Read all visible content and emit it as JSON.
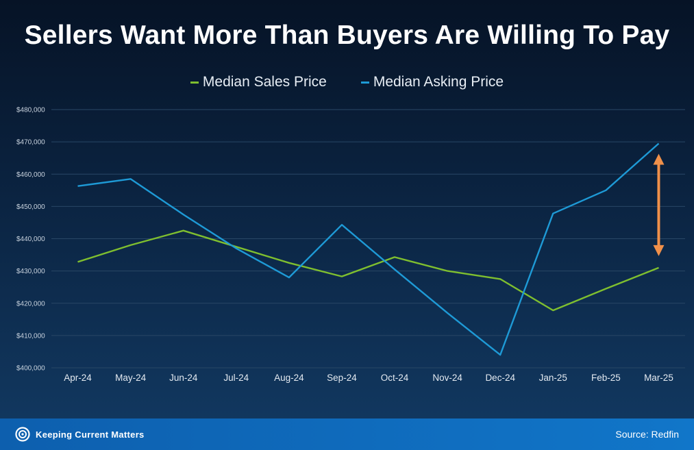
{
  "title": "Sellers Want More Than Buyers Are Willing To Pay",
  "brand": "Keeping Current Matters",
  "source": "Source: Redfin",
  "colors": {
    "sales": "#7fbf2f",
    "asking": "#1e9ad6",
    "arrow": "#f0904a",
    "grid": "#294766"
  },
  "chart_data": {
    "type": "line",
    "categories": [
      "Apr-24",
      "May-24",
      "Jun-24",
      "Jul-24",
      "Aug-24",
      "Sep-24",
      "Oct-24",
      "Nov-24",
      "Dec-24",
      "Jan-25",
      "Feb-25",
      "Mar-25"
    ],
    "series": [
      {
        "name": "Median Sales Price",
        "values": [
          432800,
          438000,
          442500,
          437500,
          432500,
          428300,
          434300,
          430000,
          427500,
          417800,
          424500,
          431000
        ]
      },
      {
        "name": "Median Asking Price",
        "values": [
          456300,
          458500,
          447500,
          437000,
          428000,
          444300,
          430500,
          417000,
          404000,
          447800,
          455000,
          469500
        ]
      }
    ],
    "yticks": [
      "$400,000",
      "$410,000",
      "$420,000",
      "$430,000",
      "$440,000",
      "$450,000",
      "$460,000",
      "$470,000",
      "$480,000"
    ],
    "ylim": [
      400000,
      480000
    ],
    "legend_position": "top",
    "grid": true
  }
}
